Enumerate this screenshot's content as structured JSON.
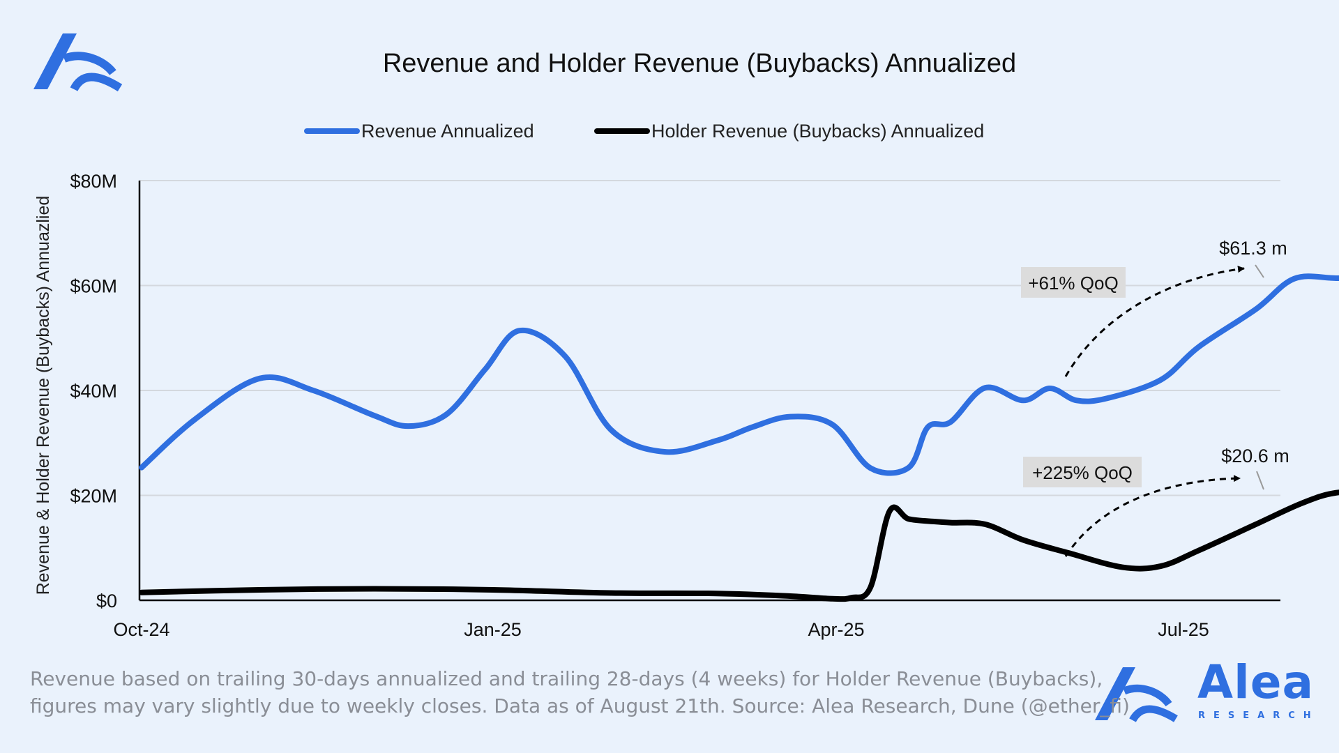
{
  "chart_data": {
    "type": "line",
    "title": "Revenue and Holder Revenue (Buybacks) Annualized",
    "ylabel": "Revenue & Holder Revenue (Buybacks) Annuazlied",
    "xlabel": "",
    "x_ticks": [
      "Oct-24",
      "Jan-25",
      "Apr-25",
      "Jul-25"
    ],
    "y_ticks": [
      "$0",
      "$20M",
      "$40M",
      "$60M",
      "$80M"
    ],
    "x_range": [
      "2024-10-01",
      "2025-08-31"
    ],
    "ylim": [
      0,
      80
    ],
    "y_unit": "$M",
    "grid": true,
    "legend_position": "top",
    "series": [
      {
        "name": "Revenue Annualized",
        "color": "#2f6fe0",
        "x": [
          "2024-10-01",
          "2024-10-15",
          "2024-11-01",
          "2024-11-15",
          "2024-12-01",
          "2024-12-10",
          "2024-12-20",
          "2024-12-30",
          "2025-01-08",
          "2025-01-20",
          "2025-02-01",
          "2025-02-15",
          "2025-03-01",
          "2025-03-10",
          "2025-03-20",
          "2025-03-31",
          "2025-04-10",
          "2025-04-20",
          "2025-04-25",
          "2025-05-01",
          "2025-05-10",
          "2025-05-20",
          "2025-05-27",
          "2025-06-03",
          "2025-06-11",
          "2025-06-25",
          "2025-07-05",
          "2025-07-20",
          "2025-07-30",
          "2025-08-10",
          "2025-08-21"
        ],
        "values": [
          25.3,
          34.5,
          42.3,
          40.0,
          35.2,
          33.2,
          35.5,
          44.0,
          51.4,
          46.5,
          32.5,
          28.3,
          30.5,
          33.0,
          35.0,
          33.5,
          25.2,
          25.3,
          33.0,
          34.0,
          40.5,
          38.1,
          40.4,
          38.1,
          38.5,
          42.0,
          48.3,
          55.5,
          61.3,
          61.4,
          61.3
        ]
      },
      {
        "name": "Holder Revenue (Buybacks) Annualized",
        "color": "#000000",
        "x": [
          "2024-10-01",
          "2024-11-01",
          "2024-12-01",
          "2025-01-01",
          "2025-02-01",
          "2025-03-01",
          "2025-03-20",
          "2025-03-31",
          "2025-04-05",
          "2025-04-10",
          "2025-04-15",
          "2025-04-20",
          "2025-04-27",
          "2025-05-01",
          "2025-05-10",
          "2025-05-20",
          "2025-06-01",
          "2025-06-15",
          "2025-06-25",
          "2025-07-05",
          "2025-07-20",
          "2025-08-01",
          "2025-08-10",
          "2025-08-21"
        ],
        "values": [
          1.5,
          2.0,
          2.2,
          2.0,
          1.4,
          1.3,
          0.8,
          0.3,
          0.5,
          2.5,
          17.0,
          15.5,
          15.0,
          14.8,
          14.5,
          11.5,
          9.0,
          6.3,
          6.5,
          9.5,
          14.5,
          18.5,
          20.5,
          20.6
        ]
      }
    ],
    "annotations": [
      {
        "label": "+61% QoQ",
        "value_label": "$61.3 m"
      },
      {
        "label": "+225% QoQ",
        "value_label": "$20.6 m"
      }
    ]
  },
  "footnote": {
    "line1": "Revenue based on trailing 30-days annualized and trailing 28-days (4 weeks) for Holder Revenue (Buybacks),",
    "line2": "figures may vary slightly due to weekly closes. Data as of August 21th. Source: Alea Research, Dune (@ether_fi)"
  },
  "brand": {
    "name": "Alea",
    "sub": "RESEARCH",
    "color": "#2f6fe0"
  }
}
